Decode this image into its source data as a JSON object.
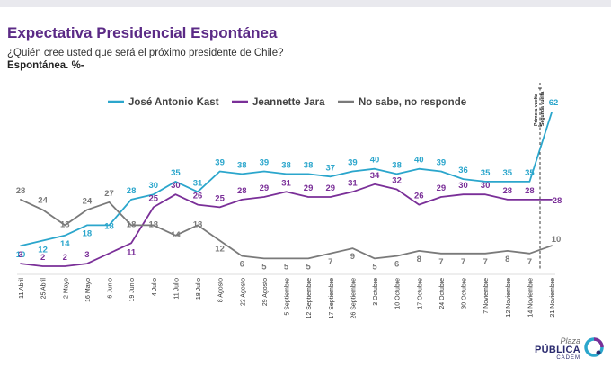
{
  "header": {
    "title": "Expectativa Presidencial Espontánea",
    "subtitle": "¿Quién cree usted que será el próximo presidente de Chile?",
    "subtitle2": "Espontánea. %-"
  },
  "brand": {
    "line1": "Plaza",
    "line2": "PÚBLICA",
    "line3": "CADEM"
  },
  "colors": {
    "kast": "#2ba6cc",
    "jara": "#7a2f98",
    "ns": "#7a7a7a",
    "title": "#5b2a86"
  },
  "chart_data": {
    "type": "line",
    "categories": [
      "11 Abril",
      "25 Abril",
      "2 Mayo",
      "16 Mayo",
      "6 Junio",
      "19 Junio",
      "4 Julio",
      "11 Julio",
      "18 Julio",
      "8 Agosto",
      "22 Agosto",
      "29 Agosto",
      "5 Septiembre",
      "12 Septiembre",
      "17 Septiembre",
      "26 Septiembre",
      "3 Octubre",
      "10 Octubre",
      "17 Octubre",
      "24 Octubre",
      "30 Octubre",
      "7 Noviembre",
      "12 Noviembre",
      "14 Noviembre",
      "21 Noviembre"
    ],
    "series": [
      {
        "name": "José Antonio Kast",
        "color": "#2ba6cc",
        "values": [
          10,
          12,
          14,
          18,
          18,
          28,
          30,
          35,
          31,
          39,
          38,
          39,
          38,
          38,
          37,
          39,
          40,
          38,
          40,
          39,
          36,
          35,
          35,
          35,
          62
        ],
        "labels": [
          "10",
          "12",
          "14",
          "18",
          "18",
          "28",
          "30",
          "35",
          "31",
          "39",
          "38",
          "39",
          "38",
          "38",
          "37",
          "39",
          "40",
          "38",
          "40",
          "39",
          "36",
          "35",
          "35",
          "35",
          "62"
        ]
      },
      {
        "name": "Jeannette Jara",
        "color": "#7a2f98",
        "values": [
          3,
          2,
          2,
          3,
          null,
          11,
          25,
          30,
          26,
          25,
          28,
          29,
          31,
          29,
          29,
          31,
          34,
          32,
          26,
          29,
          30,
          30,
          28,
          28,
          28
        ],
        "labels": [
          "3",
          "2",
          "2",
          "3",
          null,
          "11",
          "25",
          "30",
          "26",
          "25",
          "28",
          "29",
          "31",
          "29",
          "29",
          "31",
          "34",
          "32",
          "26",
          "29",
          "30",
          "30",
          "28",
          "28",
          "28"
        ]
      },
      {
        "name": "No sabe, no responde",
        "color": "#7a7a7a",
        "values": [
          28,
          24,
          18,
          24,
          27,
          18,
          18,
          14,
          18,
          12,
          6,
          5,
          5,
          5,
          7,
          9,
          5,
          6,
          8,
          7,
          7,
          7,
          8,
          7,
          10
        ],
        "labels": [
          "28",
          "24",
          "18",
          "24",
          "27",
          "18",
          "18",
          "14",
          "18",
          "12",
          "6",
          "5",
          "5",
          "5",
          "7",
          "9",
          "5",
          "6",
          "8",
          "7",
          "7",
          "7",
          "8",
          "7",
          "10"
        ]
      }
    ],
    "annotations": [
      "Primera vuelta",
      "Segunda vuelta"
    ],
    "ylim": [
      0,
      65
    ],
    "grid": false,
    "legend": "top-left"
  }
}
